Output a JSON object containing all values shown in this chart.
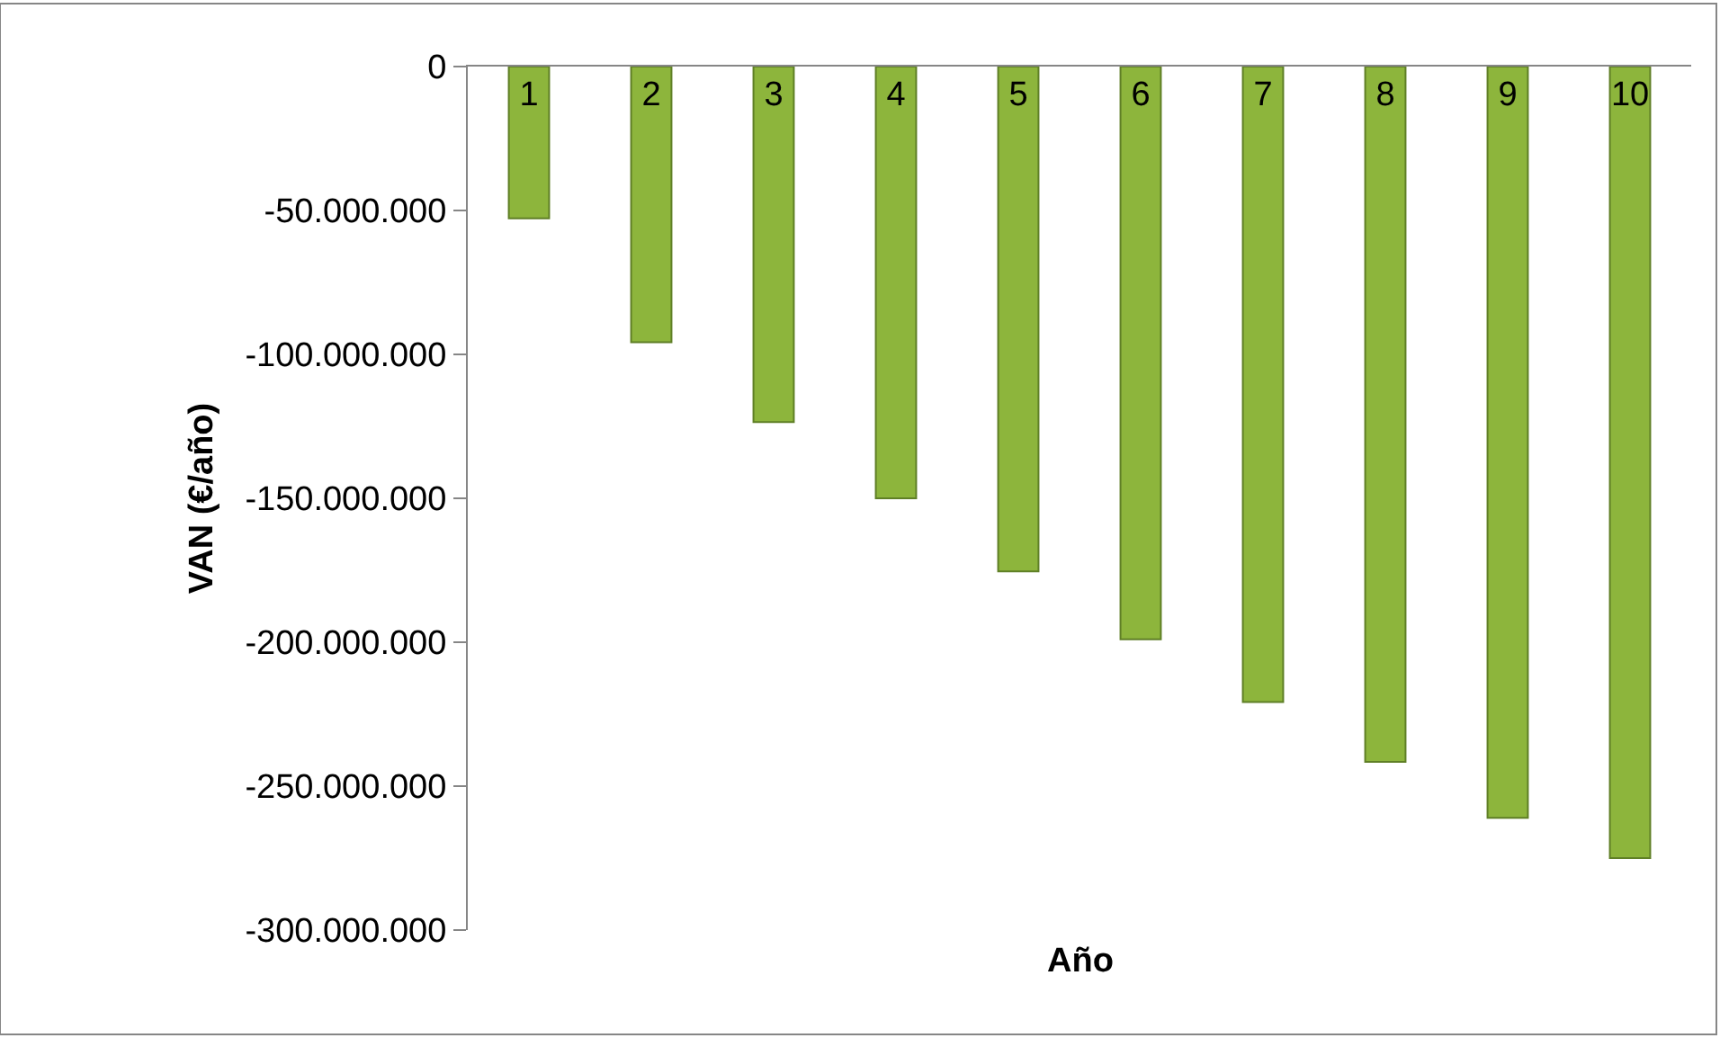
{
  "chart_data": {
    "type": "bar",
    "xlabel": "Año",
    "ylabel": "VAN (€/año)",
    "categories": [
      "1",
      "2",
      "3",
      "4",
      "5",
      "6",
      "7",
      "8",
      "9",
      "10"
    ],
    "values": [
      -52700000,
      -95800000,
      -123500000,
      -150000000,
      -175400000,
      -199000000,
      -220800000,
      -241600000,
      -261000000,
      -275000000
    ],
    "color": "#8db53c",
    "ylim": [
      -300000000,
      0
    ],
    "yticks": [
      {
        "value": 0,
        "label": "0"
      },
      {
        "value": -50000000,
        "label": "-50.000.000"
      },
      {
        "value": -100000000,
        "label": "-100.000.000"
      },
      {
        "value": -150000000,
        "label": "-150.000.000"
      },
      {
        "value": -200000000,
        "label": "-200.000.000"
      },
      {
        "value": -250000000,
        "label": "-250.000.000"
      },
      {
        "value": -300000000,
        "label": "-300.000.000"
      }
    ],
    "legend": false
  }
}
